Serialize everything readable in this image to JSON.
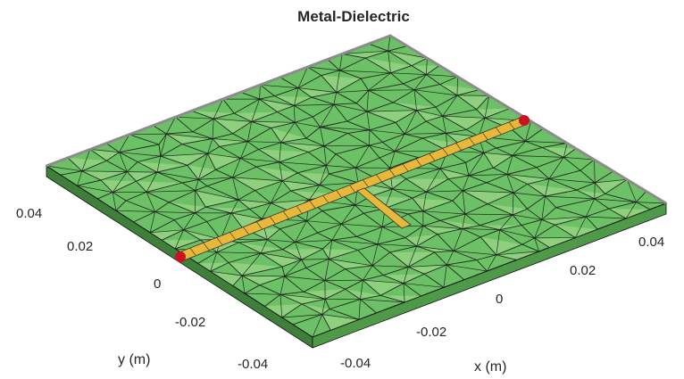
{
  "chart_data": {
    "type": "3d-mesh",
    "title": "Metal-Dielectric",
    "xlabel": "x (m)",
    "ylabel": "y (m)",
    "x_ticks": [
      "-0.04",
      "-0.02",
      "0",
      "0.02",
      "0.04"
    ],
    "y_ticks": [
      "-0.04",
      "-0.02",
      "0",
      "0.02",
      "0.04"
    ],
    "colors": {
      "substrate": "#6cc066",
      "substrate_light": "#8fd07f",
      "mesh": "#111111",
      "metal": "#e8b83a",
      "feed": "#cc1122",
      "edge": "#9a9a9a"
    }
  }
}
